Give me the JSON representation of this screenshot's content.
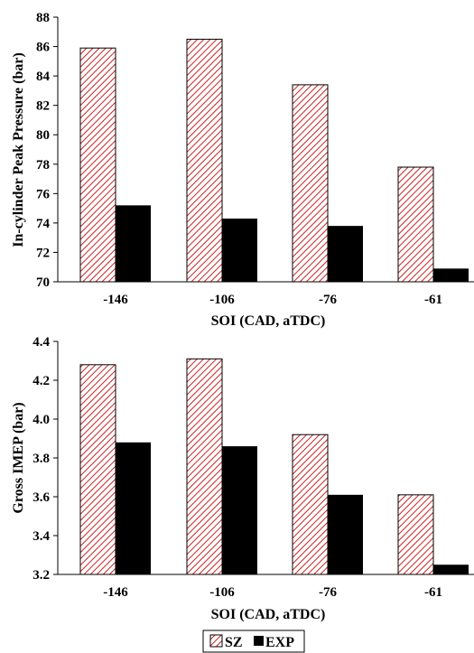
{
  "colors": {
    "sz_stroke": "#cc2222",
    "sz_fill": "#ffffff",
    "exp_fill": "#000000"
  },
  "chart_data": [
    {
      "type": "bar",
      "categories": [
        "-146",
        "-106",
        "-76",
        "-61"
      ],
      "series": [
        {
          "name": "SZ",
          "values": [
            85.9,
            86.5,
            83.4,
            77.8
          ]
        },
        {
          "name": "EXP",
          "values": [
            75.2,
            74.3,
            73.8,
            70.9
          ]
        }
      ],
      "xlabel": "SOI (CAD, aTDC)",
      "ylabel": "In-cylinder Peak Pressure (bar)",
      "ylim": [
        70,
        88
      ],
      "yticks": [
        "70",
        "72",
        "74",
        "76",
        "78",
        "80",
        "82",
        "84",
        "86",
        "88"
      ],
      "grid": false
    },
    {
      "type": "bar",
      "categories": [
        "-146",
        "-106",
        "-76",
        "-61"
      ],
      "series": [
        {
          "name": "SZ",
          "values": [
            4.28,
            4.31,
            3.92,
            3.61
          ]
        },
        {
          "name": "EXP",
          "values": [
            3.88,
            3.86,
            3.61,
            3.25
          ]
        }
      ],
      "xlabel": "SOI (CAD, aTDC)",
      "ylabel": "Gross IMEP (bar)",
      "ylim": [
        3.2,
        4.4
      ],
      "yticks": [
        "3.2",
        "3.4",
        "3.6",
        "3.8",
        "4.0",
        "4.2",
        "4.4"
      ],
      "grid": false
    }
  ],
  "legend": {
    "position": "bottom",
    "items": [
      "SZ",
      "EXP"
    ]
  }
}
